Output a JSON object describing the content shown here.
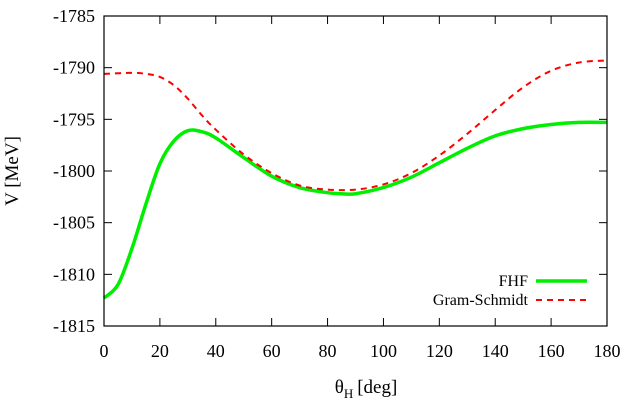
{
  "chart_data": {
    "type": "line",
    "title": "",
    "xlabel": "θ",
    "xlabel_sub": "H",
    "xlabel_unit": "[deg]",
    "ylabel": "V [MeV]",
    "xlim": [
      0,
      180
    ],
    "ylim": [
      -1815,
      -1785
    ],
    "xticks": [
      "0",
      "20",
      "40",
      "60",
      "80",
      "100",
      "120",
      "140",
      "160",
      "180"
    ],
    "yticks": [
      "-1785",
      "-1790",
      "-1795",
      "-1800",
      "-1805",
      "-1810",
      "-1815"
    ],
    "grid": false,
    "legend_position": "bottom-right",
    "series": [
      {
        "name": "FHF",
        "color": "#00ee00",
        "style": "solid",
        "x": [
          0,
          5,
          10,
          15,
          20,
          25,
          30,
          35,
          40,
          50,
          60,
          70,
          80,
          85,
          90,
          100,
          110,
          120,
          130,
          140,
          150,
          160,
          170,
          180
        ],
        "y": [
          -1812.3,
          -1811.0,
          -1807.5,
          -1803.2,
          -1799.3,
          -1797.1,
          -1796.1,
          -1796.2,
          -1796.8,
          -1798.7,
          -1800.5,
          -1801.6,
          -1802.1,
          -1802.2,
          -1802.2,
          -1801.6,
          -1800.6,
          -1799.2,
          -1797.8,
          -1796.6,
          -1795.9,
          -1795.5,
          -1795.3,
          -1795.3
        ]
      },
      {
        "name": "Gram-Schmidt",
        "color": "#ff0000",
        "style": "dashed",
        "x": [
          0,
          10,
          15,
          20,
          25,
          30,
          35,
          40,
          50,
          60,
          70,
          80,
          90,
          100,
          110,
          120,
          130,
          140,
          150,
          160,
          170,
          180
        ],
        "y": [
          -1790.6,
          -1790.5,
          -1790.6,
          -1790.9,
          -1791.7,
          -1793.0,
          -1794.6,
          -1796.0,
          -1798.4,
          -1800.2,
          -1801.4,
          -1801.8,
          -1801.8,
          -1801.3,
          -1800.2,
          -1798.5,
          -1796.4,
          -1794.1,
          -1791.9,
          -1790.3,
          -1789.5,
          -1789.3
        ]
      }
    ]
  }
}
